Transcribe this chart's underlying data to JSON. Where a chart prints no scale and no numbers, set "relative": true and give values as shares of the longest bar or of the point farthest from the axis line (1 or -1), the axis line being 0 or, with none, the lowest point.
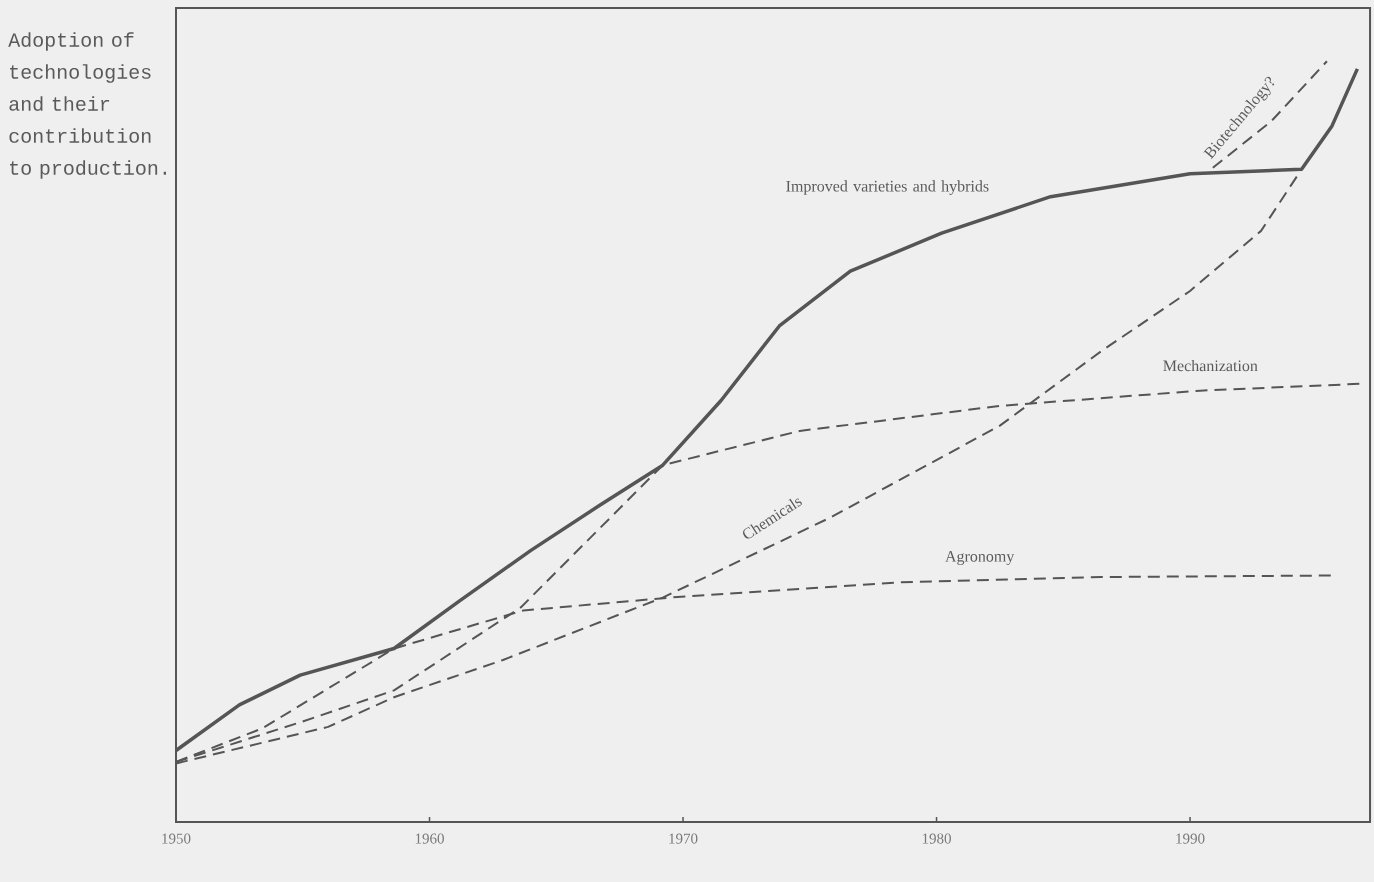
{
  "chart_data": {
    "type": "line",
    "relative": true,
    "ylabel": "Adoption of technologies and their contribution to production.",
    "xlim": [
      1950,
      1997.1
    ],
    "xticks": [
      1950,
      1960,
      1970,
      1980,
      1990
    ],
    "series": [
      {
        "name": "Improved varieties and hybrids",
        "color": "#555555",
        "line_style": "solid",
        "x": [
          1950.0,
          1952.5,
          1954.9,
          1958.6,
          1961.2,
          1964.0,
          1966.7,
          1969.2,
          1971.5,
          1973.8,
          1976.6,
          1980.2,
          1984.5,
          1990.0,
          1994.4,
          1995.6,
          1996.6
        ],
        "values": [
          0.094,
          0.154,
          0.193,
          0.228,
          0.291,
          0.357,
          0.416,
          0.469,
          0.554,
          0.652,
          0.724,
          0.774,
          0.822,
          0.852,
          0.858,
          0.915,
          0.99
        ]
      },
      {
        "name": "Mechanization",
        "color": "#555555",
        "line_style": "dashed",
        "x": [
          1950.0,
          1954.9,
          1958.6,
          1963.6,
          1969.2,
          1974.6,
          1982.5,
          1990.4,
          1996.7
        ],
        "values": [
          0.079,
          0.131,
          0.173,
          0.282,
          0.469,
          0.514,
          0.547,
          0.567,
          0.576
        ]
      },
      {
        "name": "Chemicals",
        "color": "#555555",
        "line_style": "dashed",
        "x": [
          1950.0,
          1956.0,
          1958.6,
          1962.9,
          1969.2,
          1975.8,
          1982.5,
          1986.5,
          1990.0,
          1992.8,
          1994.4
        ],
        "values": [
          0.077,
          0.125,
          0.164,
          0.213,
          0.295,
          0.4,
          0.521,
          0.619,
          0.698,
          0.777,
          0.858
        ]
      },
      {
        "name": "Agronomy",
        "color": "#555555",
        "line_style": "dashed",
        "x": [
          1950.0,
          1953.4,
          1958.6,
          1963.7,
          1969.5,
          1978.6,
          1986.5,
          1995.6
        ],
        "values": [
          0.079,
          0.123,
          0.228,
          0.278,
          0.295,
          0.315,
          0.322,
          0.324
        ]
      },
      {
        "name": "Biotechnology?",
        "color": "#555555",
        "line_style": "dashed",
        "x": [
          1990.9,
          1993.2,
          1995.4
        ],
        "values": [
          0.86,
          0.921,
          1.0
        ]
      }
    ]
  }
}
